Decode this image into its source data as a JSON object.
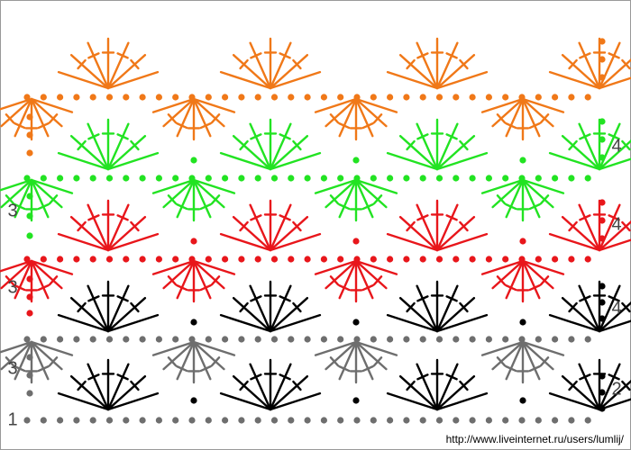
{
  "row_labels": [
    "1",
    "3",
    "3",
    "3",
    "4",
    "4",
    "4",
    "2"
  ],
  "footer": {
    "url": "http://www.liveinternet.ru/users/lumlij/"
  }
}
